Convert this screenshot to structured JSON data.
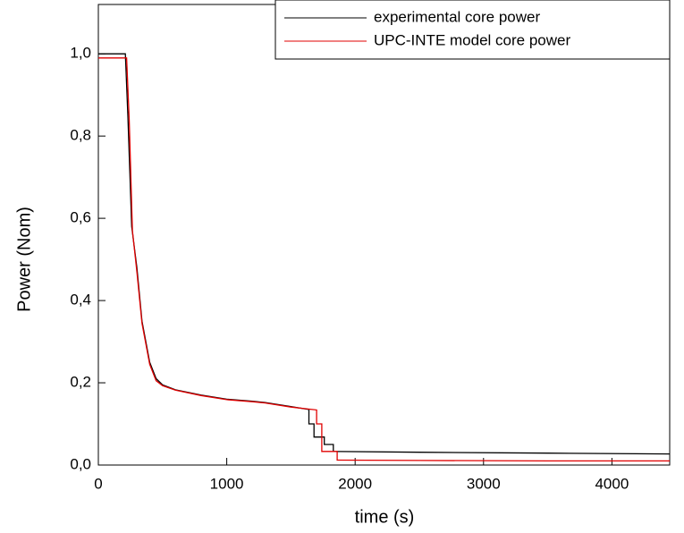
{
  "chart_data": {
    "type": "line",
    "x_label": "time (s)",
    "y_label": "Power (Nom)",
    "xlim": [
      0,
      4450
    ],
    "ylim": [
      0,
      1.12
    ],
    "xticks": [
      0,
      1000,
      2000,
      3000,
      4000
    ],
    "yticks": [
      {
        "value": 0,
        "label": "0,0"
      },
      {
        "value": 0.2,
        "label": "0,2"
      },
      {
        "value": 0.4,
        "label": "0,4"
      },
      {
        "value": 0.6,
        "label": "0,6"
      },
      {
        "value": 0.8,
        "label": "0,8"
      },
      {
        "value": 1.0,
        "label": "1,0"
      }
    ],
    "legend": "upper right",
    "series": [
      {
        "name": "experimental core power",
        "color": "#000000",
        "x": [
          0,
          210,
          230,
          260,
          300,
          340,
          400,
          450,
          500,
          600,
          800,
          1000,
          1200,
          1300,
          1500,
          1640,
          1640,
          1680,
          1680,
          1760,
          1760,
          1830,
          1830,
          2500,
          3500,
          4450
        ],
        "values": [
          1.0,
          1.0,
          0.85,
          0.58,
          0.48,
          0.35,
          0.25,
          0.21,
          0.195,
          0.183,
          0.17,
          0.16,
          0.155,
          0.152,
          0.142,
          0.135,
          0.1,
          0.1,
          0.068,
          0.068,
          0.05,
          0.05,
          0.033,
          0.031,
          0.029,
          0.027
        ]
      },
      {
        "name": "UPC-INTE model core power",
        "color": "#e00000",
        "x": [
          0,
          220,
          240,
          265,
          300,
          340,
          400,
          450,
          500,
          600,
          800,
          1000,
          1200,
          1300,
          1500,
          1700,
          1700,
          1740,
          1740,
          1860,
          1860,
          2500,
          3500,
          4450
        ],
        "values": [
          0.99,
          0.99,
          0.84,
          0.57,
          0.47,
          0.345,
          0.245,
          0.205,
          0.193,
          0.182,
          0.169,
          0.159,
          0.154,
          0.151,
          0.141,
          0.134,
          0.1,
          0.1,
          0.033,
          0.033,
          0.012,
          0.011,
          0.01,
          0.01
        ]
      }
    ]
  }
}
